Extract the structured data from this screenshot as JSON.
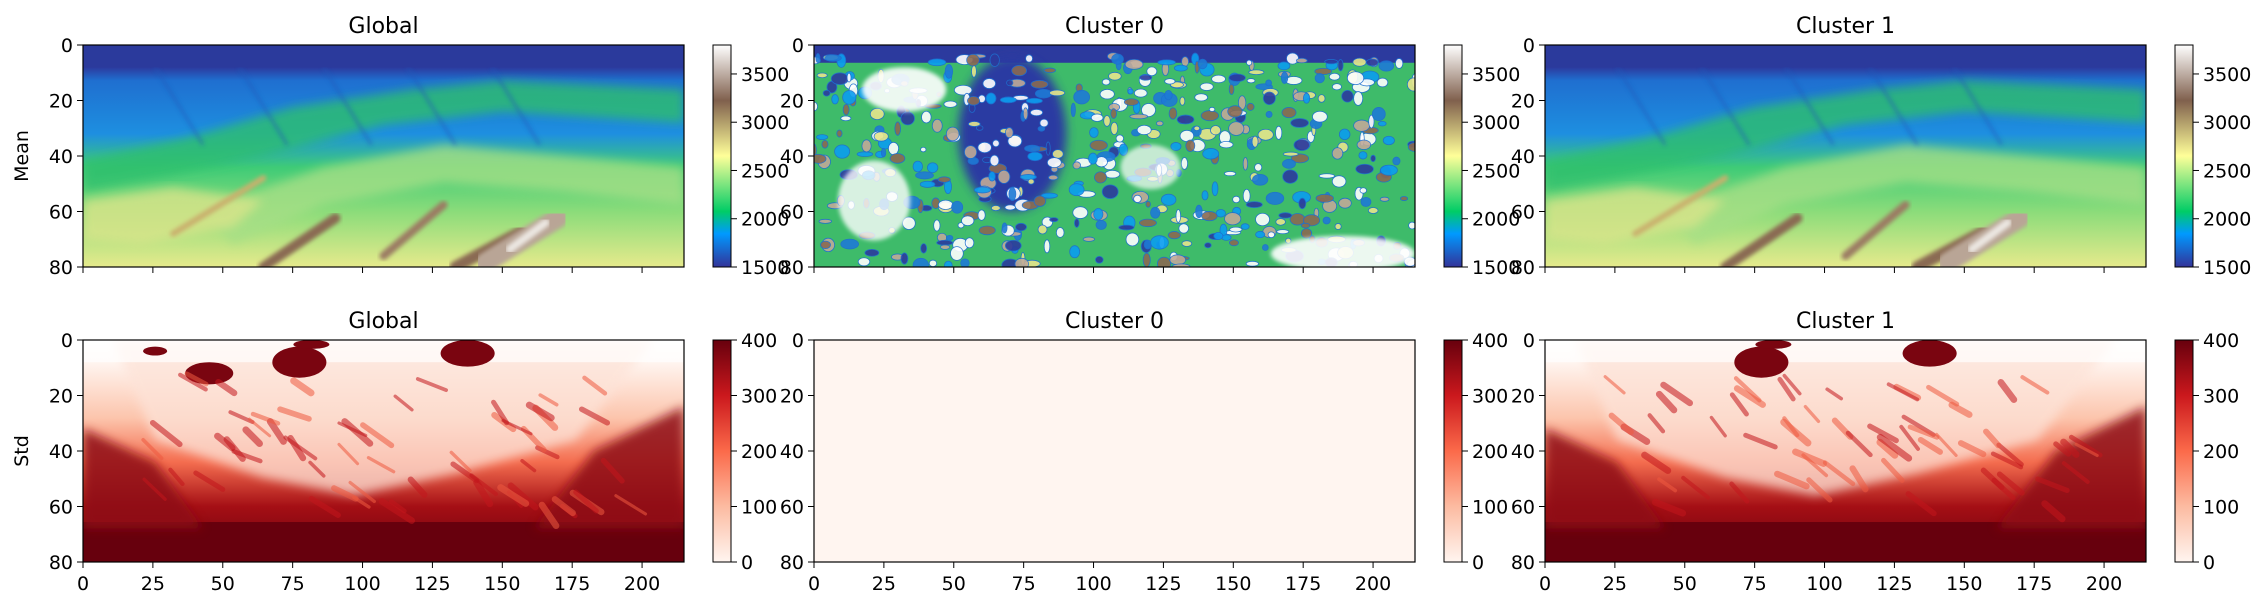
{
  "figure": {
    "row_labels": [
      "Mean",
      "Std"
    ]
  },
  "colorbars": {
    "mean": {
      "ticks": [
        "1500",
        "2000",
        "2500",
        "3000",
        "3500"
      ],
      "range": [
        1500,
        3800
      ],
      "colormap": "terrain"
    },
    "std": {
      "ticks": [
        "0",
        "100",
        "200",
        "300",
        "400"
      ],
      "range": [
        0,
        400
      ],
      "colormap": "Reds"
    }
  },
  "chart_data": [
    {
      "type": "heatmap",
      "title": "Global",
      "row": "Mean",
      "xlim": [
        0,
        215
      ],
      "ylim": [
        80,
        0
      ],
      "xticks": [
        "0",
        "25",
        "50",
        "75",
        "100",
        "125",
        "150",
        "175",
        "200"
      ],
      "yticks": [
        "0",
        "20",
        "40",
        "60",
        "80"
      ],
      "value_range": [
        1500,
        3800
      ],
      "colormap": "terrain"
    },
    {
      "type": "heatmap",
      "title": "Cluster 0",
      "row": "Mean",
      "xlim": [
        0,
        215
      ],
      "ylim": [
        80,
        0
      ],
      "xticks": [
        "0",
        "25",
        "50",
        "75",
        "100",
        "125",
        "150",
        "175",
        "200"
      ],
      "yticks": [
        "0",
        "20",
        "40",
        "60",
        "80"
      ],
      "value_range": [
        1500,
        3800
      ],
      "colormap": "terrain"
    },
    {
      "type": "heatmap",
      "title": "Cluster 1",
      "row": "Mean",
      "xlim": [
        0,
        215
      ],
      "ylim": [
        80,
        0
      ],
      "xticks": [
        "0",
        "25",
        "50",
        "75",
        "100",
        "125",
        "150",
        "175",
        "200"
      ],
      "yticks": [
        "0",
        "20",
        "40",
        "60",
        "80"
      ],
      "value_range": [
        1500,
        3800
      ],
      "colormap": "terrain"
    },
    {
      "type": "heatmap",
      "title": "Global",
      "row": "Std",
      "xlim": [
        0,
        215
      ],
      "ylim": [
        80,
        0
      ],
      "xticks": [
        "0",
        "25",
        "50",
        "75",
        "100",
        "125",
        "150",
        "175",
        "200"
      ],
      "yticks": [
        "0",
        "20",
        "40",
        "60",
        "80"
      ],
      "value_range": [
        0,
        400
      ],
      "colormap": "Reds"
    },
    {
      "type": "heatmap",
      "title": "Cluster 0",
      "row": "Std",
      "xlim": [
        0,
        215
      ],
      "ylim": [
        80,
        0
      ],
      "xticks": [
        "0",
        "25",
        "50",
        "75",
        "100",
        "125",
        "150",
        "175",
        "200"
      ],
      "yticks": [
        "0",
        "20",
        "40",
        "60",
        "80"
      ],
      "value_range": [
        0,
        400
      ],
      "colormap": "Reds",
      "uniform_value": 0
    },
    {
      "type": "heatmap",
      "title": "Cluster 1",
      "row": "Std",
      "xlim": [
        0,
        215
      ],
      "ylim": [
        80,
        0
      ],
      "xticks": [
        "0",
        "25",
        "50",
        "75",
        "100",
        "125",
        "150",
        "175",
        "200"
      ],
      "yticks": [
        "0",
        "20",
        "40",
        "60",
        "80"
      ],
      "value_range": [
        0,
        400
      ],
      "colormap": "Reds"
    }
  ]
}
